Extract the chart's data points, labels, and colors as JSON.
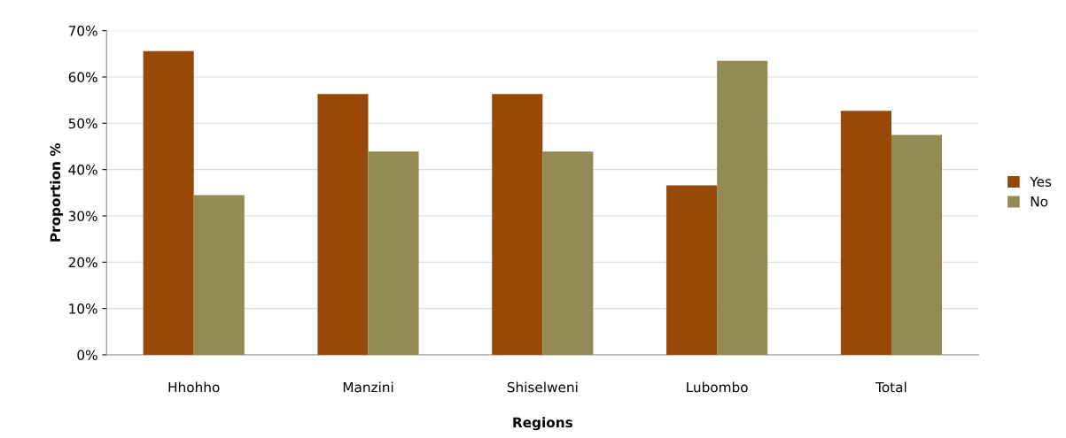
{
  "chart_data": {
    "type": "bar",
    "xlabel": "Regions",
    "ylabel": "Proportion %",
    "categories": [
      "Hhohho",
      "Manzini",
      "Shiselweni",
      "Lubombo",
      "Total"
    ],
    "series": [
      {
        "name": "Yes",
        "color": "#984807",
        "values": [
          65.6,
          56.3,
          56.3,
          36.6,
          52.7
        ]
      },
      {
        "name": "No",
        "color": "#948a54",
        "values": [
          34.5,
          43.9,
          43.9,
          63.5,
          47.5
        ]
      }
    ],
    "ylim": [
      0,
      70
    ],
    "yticks": [
      {
        "value": 0,
        "label": "0%"
      },
      {
        "value": 10,
        "label": "10%"
      },
      {
        "value": 20,
        "label": "20%"
      },
      {
        "value": 30,
        "label": "30%"
      },
      {
        "value": 40,
        "label": "40%"
      },
      {
        "value": 50,
        "label": "50%"
      },
      {
        "value": 60,
        "label": "60%"
      },
      {
        "value": 70,
        "label": "70%"
      }
    ],
    "grid": "y",
    "legend": "right"
  }
}
